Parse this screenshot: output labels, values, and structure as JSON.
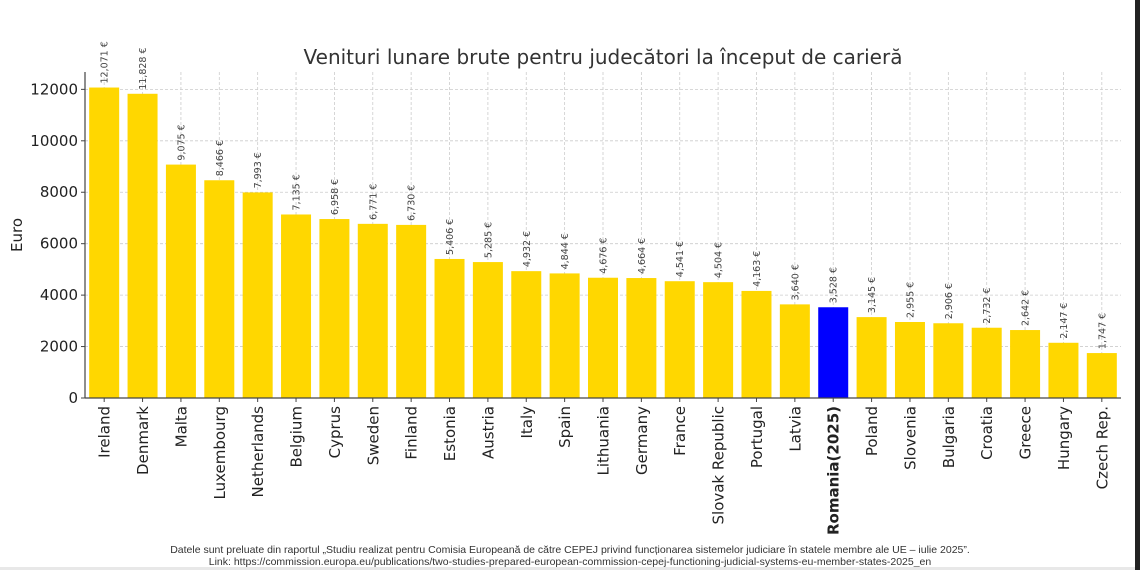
{
  "chart_data": {
    "type": "bar",
    "title": "Venituri lunare brute pentru judecători la început de carieră",
    "xlabel": "",
    "ylabel": "Euro",
    "ylim": [
      0,
      12675
    ],
    "yticks": [
      0,
      2000,
      4000,
      6000,
      8000,
      10000,
      12000
    ],
    "grid": true,
    "categories": [
      "Ireland",
      "Denmark",
      "Malta",
      "Luxembourg",
      "Netherlands",
      "Belgium",
      "Cyprus",
      "Sweden",
      "Finland",
      "Estonia",
      "Austria",
      "Italy",
      "Spain",
      "Lithuania",
      "Germany",
      "France",
      "Slovak Republic",
      "Portugal",
      "Latvia",
      "Romania(2025)",
      "Poland",
      "Slovenia",
      "Bulgaria",
      "Croatia",
      "Greece",
      "Hungary",
      "Czech Rep."
    ],
    "values": [
      12071,
      11828,
      9075,
      8466,
      7993,
      7135,
      6958,
      6771,
      6730,
      5406,
      5285,
      4932,
      4844,
      4676,
      4664,
      4541,
      4504,
      4163,
      3640,
      3528,
      3145,
      2955,
      2906,
      2732,
      2642,
      2147,
      1747
    ],
    "data_labels": [
      "12,071 €",
      "11,828 €",
      "9,075 €",
      "8,466 €",
      "7,993 €",
      "7,135 €",
      "6,958 €",
      "6,771 €",
      "6,730 €",
      "5,406 €",
      "5,285 €",
      "4,932 €",
      "4,844 €",
      "4,676 €",
      "4,664 €",
      "4,541 €",
      "4,504 €",
      "4,163 €",
      "3,640 €",
      "3,528 €",
      "3,145 €",
      "2,955 €",
      "2,906 €",
      "2,732 €",
      "2,642 €",
      "2,147 €",
      "1,747 €"
    ],
    "highlight": "Romania(2025)",
    "colors": {
      "bar": "#FFD700",
      "highlight": "#0000FF"
    }
  },
  "footnote": {
    "line1": "Datele sunt preluate din raportul „Studiu realizat pentru Comisia Europeană de către CEPEJ privind funcționarea sistemelor judiciare în statele membre ale UE – iulie 2025”.",
    "line2": "Link: https://commission.europa.eu/publications/two-studies-prepared-european-commission-cepej-functioning-judicial-systems-eu-member-states-2025_en"
  }
}
